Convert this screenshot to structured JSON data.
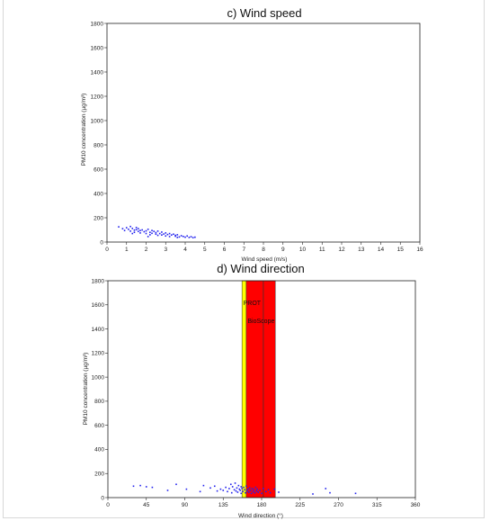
{
  "chart_data": [
    {
      "type": "scatter",
      "title": "c)   Wind speed",
      "xlabel": "Wind speed (m/s)",
      "ylabel": "PM10 concentration (µg/m³)",
      "xlim": [
        0,
        16
      ],
      "ylim": [
        0,
        1800
      ],
      "xticks": [
        0,
        1,
        2,
        3,
        4,
        5,
        6,
        7,
        8,
        9,
        10,
        11,
        12,
        13,
        14,
        15,
        16
      ],
      "yticks": [
        0,
        200,
        400,
        600,
        800,
        1000,
        1200,
        1400,
        1600,
        1800
      ],
      "color": "#2222ee",
      "series": [
        {
          "points": [
            [
              0.6,
              125
            ],
            [
              0.8,
              110
            ],
            [
              0.9,
              95
            ],
            [
              1.0,
              118
            ],
            [
              1.1,
              105
            ],
            [
              1.2,
              90
            ],
            [
              1.2,
              128
            ],
            [
              1.3,
              112
            ],
            [
              1.4,
              98
            ],
            [
              1.4,
              80
            ],
            [
              1.5,
              120
            ],
            [
              1.5,
              102
            ],
            [
              1.6,
              88
            ],
            [
              1.6,
              110
            ],
            [
              1.7,
              95
            ],
            [
              1.7,
              75
            ],
            [
              1.8,
              100
            ],
            [
              1.9,
              85
            ],
            [
              2.0,
              92
            ],
            [
              2.0,
              70
            ],
            [
              2.1,
              105
            ],
            [
              2.2,
              80
            ],
            [
              2.2,
              60
            ],
            [
              2.3,
              95
            ],
            [
              2.3,
              72
            ],
            [
              2.4,
              88
            ],
            [
              2.5,
              65
            ],
            [
              2.5,
              78
            ],
            [
              2.6,
              90
            ],
            [
              2.6,
              55
            ],
            [
              2.7,
              70
            ],
            [
              2.8,
              82
            ],
            [
              2.8,
              58
            ],
            [
              2.9,
              66
            ],
            [
              3.0,
              75
            ],
            [
              3.0,
              50
            ],
            [
              3.1,
              62
            ],
            [
              3.2,
              70
            ],
            [
              3.2,
              45
            ],
            [
              3.3,
              58
            ],
            [
              3.4,
              65
            ],
            [
              3.5,
              48
            ],
            [
              3.5,
              55
            ],
            [
              3.6,
              60
            ],
            [
              3.7,
              42
            ],
            [
              3.8,
              52
            ],
            [
              3.9,
              46
            ],
            [
              4.0,
              40
            ],
            [
              4.1,
              50
            ],
            [
              4.2,
              38
            ],
            [
              4.3,
              44
            ],
            [
              4.4,
              36
            ],
            [
              4.5,
              40
            ],
            [
              2.1,
              45
            ],
            [
              1.3,
              70
            ],
            [
              3.6,
              38
            ]
          ]
        }
      ]
    },
    {
      "type": "scatter",
      "title": "d)   Wind direction",
      "xlabel": "Wind direction (°)",
      "ylabel": "PM10 concentration (µg/m³)",
      "xlim": [
        0,
        360
      ],
      "ylim": [
        0,
        1800
      ],
      "xticks": [
        0,
        45,
        90,
        135,
        180,
        225,
        270,
        315,
        360
      ],
      "yticks": [
        0,
        200,
        400,
        600,
        800,
        1000,
        1200,
        1400,
        1600,
        1800
      ],
      "color": "#2222ee",
      "bands": [
        {
          "label": "PROT",
          "from": 157,
          "to": 162,
          "color": "#ffff00",
          "label_y": 1600
        },
        {
          "label": "BioScope",
          "from": 162,
          "to": 196,
          "color": "#ff0000",
          "label_y": 1450
        }
      ],
      "vlines": [
        182
      ],
      "series": [
        {
          "points": [
            [
              30,
              95
            ],
            [
              38,
              100
            ],
            [
              45,
              90
            ],
            [
              52,
              85
            ],
            [
              70,
              60
            ],
            [
              80,
              110
            ],
            [
              92,
              70
            ],
            [
              108,
              50
            ],
            [
              112,
              100
            ],
            [
              120,
              80
            ],
            [
              125,
              95
            ],
            [
              128,
              55
            ],
            [
              132,
              70
            ],
            [
              135,
              60
            ],
            [
              138,
              85
            ],
            [
              140,
              50
            ],
            [
              142,
              75
            ],
            [
              144,
              110
            ],
            [
              145,
              40
            ],
            [
              146,
              90
            ],
            [
              148,
              65
            ],
            [
              149,
              120
            ],
            [
              150,
              55
            ],
            [
              151,
              80
            ],
            [
              152,
              45
            ],
            [
              153,
              100
            ],
            [
              154,
              70
            ],
            [
              155,
              60
            ],
            [
              156,
              90
            ],
            [
              156,
              35
            ],
            [
              157,
              75
            ],
            [
              158,
              50
            ],
            [
              159,
              85
            ],
            [
              160,
              65
            ],
            [
              161,
              40
            ],
            [
              162,
              95
            ],
            [
              163,
              55
            ],
            [
              164,
              70
            ],
            [
              165,
              45
            ],
            [
              166,
              80
            ],
            [
              167,
              60
            ],
            [
              168,
              35
            ],
            [
              169,
              75
            ],
            [
              170,
              50
            ],
            [
              171,
              65
            ],
            [
              172,
              40
            ],
            [
              173,
              85
            ],
            [
              174,
              55
            ],
            [
              175,
              70
            ],
            [
              176,
              45
            ],
            [
              178,
              60
            ],
            [
              180,
              35
            ],
            [
              182,
              75
            ],
            [
              185,
              50
            ],
            [
              188,
              65
            ],
            [
              190,
              40
            ],
            [
              195,
              70
            ],
            [
              200,
              45
            ],
            [
              240,
              30
            ],
            [
              255,
              75
            ],
            [
              260,
              40
            ],
            [
              290,
              35
            ]
          ]
        }
      ]
    }
  ]
}
